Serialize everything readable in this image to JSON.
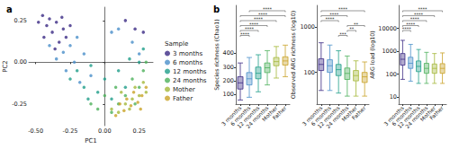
{
  "chart_data": [
    {
      "type": "scatter",
      "panel_label": "a",
      "xlabel": "PC1",
      "ylabel": "PC2",
      "legend_title": "Sample",
      "legend": "right",
      "xlim": [
        -0.55,
        0.35
      ],
      "ylim": [
        -0.38,
        0.33
      ],
      "xticks": [
        {
          "value": -0.5,
          "label": "-0.50"
        },
        -0.25,
        {
          "value": 0,
          "label": "0.00"
        },
        0.25
      ],
      "yticks": [
        -0.25,
        {
          "value": 0,
          "label": "0.00"
        },
        0.25
      ],
      "grid": false,
      "marker": "circle",
      "series": [
        {
          "name": "3 months",
          "color": "#3b2a84",
          "x": [
            -0.45,
            -0.42,
            -0.4,
            -0.38,
            -0.35,
            -0.33,
            -0.3,
            -0.28,
            -0.44,
            -0.36,
            -0.25,
            0.15,
            0.22,
            0.28,
            -0.48,
            -0.31
          ],
          "y": [
            0.28,
            0.22,
            0.26,
            0.18,
            0.24,
            0.12,
            0.2,
            0.15,
            0.15,
            0.08,
            0.22,
            0.25,
            0.2,
            0.18,
            0.24,
            0.27
          ]
        },
        {
          "name": "6 months",
          "color": "#4a8fc9",
          "x": [
            -0.4,
            -0.35,
            -0.3,
            -0.25,
            -0.22,
            -0.2,
            -0.15,
            -0.28,
            0.05,
            0.2,
            0.25,
            -0.1,
            -0.18,
            0.1
          ],
          "y": [
            0.1,
            0.02,
            0.06,
            0.1,
            0.0,
            0.15,
            0.05,
            -0.05,
            0.18,
            0.12,
            0.05,
            -0.08,
            -0.12,
            0.2
          ]
        },
        {
          "name": "12 months",
          "color": "#1f9e89",
          "x": [
            -0.25,
            -0.2,
            -0.15,
            -0.1,
            -0.05,
            0.0,
            0.05,
            0.1,
            0.18,
            0.25,
            -0.12,
            0.15,
            0.28
          ],
          "y": [
            -0.1,
            -0.05,
            -0.15,
            -0.02,
            -0.18,
            -0.1,
            -0.22,
            -0.05,
            0.02,
            0.0,
            -0.22,
            -0.15,
            0.08
          ]
        },
        {
          "name": "24 months",
          "color": "#4cb05a",
          "x": [
            -0.1,
            -0.05,
            0.0,
            0.05,
            0.1,
            0.15,
            0.2,
            0.25,
            0.28,
            0.08,
            0.22,
            0.3
          ],
          "y": [
            -0.25,
            -0.28,
            -0.2,
            -0.3,
            -0.25,
            -0.2,
            -0.1,
            -0.15,
            -0.05,
            -0.15,
            -0.25,
            0.0
          ]
        },
        {
          "name": "Mother",
          "color": "#a4b83a",
          "x": [
            0.05,
            0.1,
            0.15,
            0.2,
            0.25,
            0.28,
            0.18,
            0.12,
            0.3,
            0.22
          ],
          "y": [
            -0.28,
            -0.3,
            -0.25,
            -0.22,
            -0.2,
            -0.12,
            -0.28,
            -0.18,
            -0.18,
            -0.15
          ]
        },
        {
          "name": "Father",
          "color": "#c9a227",
          "x": [
            0.08,
            0.14,
            0.19,
            0.24,
            0.27,
            0.3,
            0.16,
            0.21,
            0.26,
            0.11
          ],
          "y": [
            -0.32,
            -0.29,
            -0.26,
            -0.24,
            -0.2,
            -0.15,
            -0.22,
            -0.18,
            -0.28,
            -0.25
          ]
        }
      ]
    },
    {
      "type": "boxplot",
      "panel_label": "b",
      "ylabel": "Species richness (Chao1)",
      "log": false,
      "grid": false,
      "categories": [
        "3 months",
        "6 months",
        "12 months",
        "24 months",
        "Mother",
        "Father"
      ],
      "colors": [
        "#3b2a84",
        "#4a8fc9",
        "#1f9e89",
        "#4cb05a",
        "#a4b83a",
        "#c9a227"
      ],
      "values": [
        [
          60,
          140,
          185,
          230,
          330
        ],
        [
          80,
          170,
          215,
          260,
          370
        ],
        [
          120,
          215,
          255,
          300,
          390
        ],
        [
          170,
          260,
          295,
          330,
          420
        ],
        [
          220,
          310,
          340,
          370,
          450
        ],
        [
          230,
          315,
          345,
          375,
          460
        ]
      ],
      "ylim": [
        30,
        750
      ],
      "yticks": [
        100,
        200,
        300,
        400
      ],
      "annotations": [
        {
          "from": "3 months",
          "to": "6 months",
          "label": "****"
        },
        {
          "from": "3 months",
          "to": "12 months",
          "label": "****"
        },
        {
          "from": "3 months",
          "to": "24 months",
          "label": "****"
        },
        {
          "from": "3 months",
          "to": "Mother",
          "label": "****"
        },
        {
          "from": "3 months",
          "to": "Father",
          "label": "****"
        },
        {
          "from": "6 months",
          "to": "Father",
          "label": "****"
        }
      ]
    },
    {
      "type": "boxplot",
      "ylabel": "Observed ARG richness (log10)",
      "log": "y",
      "grid": false,
      "categories": [
        "3 months",
        "6 months",
        "12 months",
        "24 months",
        "Mother",
        "Father"
      ],
      "colors": [
        "#3b2a84",
        "#4a8fc9",
        "#1f9e89",
        "#4cb05a",
        "#a4b83a",
        "#c9a227"
      ],
      "values": [
        [
          40,
          110,
          150,
          200,
          450
        ],
        [
          40,
          100,
          140,
          190,
          400
        ],
        [
          35,
          85,
          115,
          150,
          300
        ],
        [
          30,
          70,
          95,
          125,
          230
        ],
        [
          30,
          65,
          85,
          110,
          180
        ],
        [
          30,
          60,
          80,
          100,
          170
        ]
      ],
      "ylim": [
        20,
        3000
      ],
      "yticks": [
        100,
        1000
      ],
      "annotations": [
        {
          "from": "12 months",
          "to": "24 months",
          "label": "***"
        },
        {
          "from": "24 months",
          "to": "Mother",
          "label": "**"
        },
        {
          "from": "24 months",
          "to": "Father",
          "label": "**"
        },
        {
          "from": "3 months",
          "to": "12 months",
          "label": "****"
        },
        {
          "from": "3 months",
          "to": "24 months",
          "label": "****"
        },
        {
          "from": "3 months",
          "to": "Father",
          "label": "****"
        }
      ]
    },
    {
      "type": "boxplot",
      "ylabel": "ARG load (log10)",
      "log": "y",
      "grid": false,
      "categories": [
        "3 months",
        "6 months",
        "12 months",
        "24 months",
        "Mother",
        "Father"
      ],
      "colors": [
        "#3b2a84",
        "#4a8fc9",
        "#1f9e89",
        "#4cb05a",
        "#a4b83a",
        "#c9a227"
      ],
      "values": [
        [
          60,
          250,
          450,
          800,
          3000
        ],
        [
          50,
          180,
          300,
          550,
          2000
        ],
        [
          40,
          130,
          220,
          380,
          1200
        ],
        [
          40,
          110,
          180,
          300,
          900
        ],
        [
          40,
          110,
          180,
          280,
          800
        ],
        [
          40,
          110,
          180,
          290,
          850
        ]
      ],
      "ylim": [
        5,
        100000
      ],
      "yticks": [
        10,
        100,
        1000,
        10000
      ],
      "annotations": [
        {
          "from": "3 months",
          "to": "6 months",
          "label": "****"
        },
        {
          "from": "3 months",
          "to": "12 months",
          "label": "****"
        },
        {
          "from": "3 months",
          "to": "24 months",
          "label": "****"
        },
        {
          "from": "3 months",
          "to": "Mother",
          "label": "****"
        },
        {
          "from": "3 months",
          "to": "Father",
          "label": "****"
        }
      ]
    }
  ]
}
